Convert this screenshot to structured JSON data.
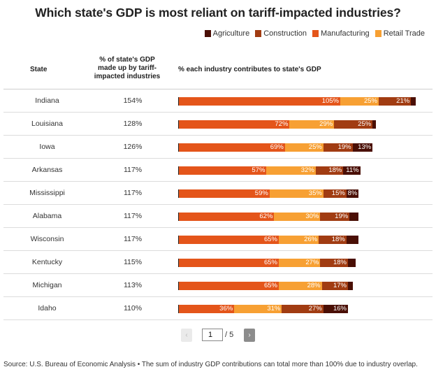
{
  "chart_data": {
    "type": "bar",
    "orientation": "horizontal",
    "stacked": true,
    "title": "Which state's GDP is most reliant on tariff-impacted industries?",
    "legend": [
      "Agriculture",
      "Construction",
      "Manufacturing",
      "Retail Trade"
    ],
    "columns": {
      "state": "State",
      "pct": "% of state's GDP made up by tariff-impacted industries",
      "industry": "% each industry contributes to state's GDP"
    },
    "categories": [
      "Indiana",
      "Louisiana",
      "Iowa",
      "Arkansas",
      "Mississippi",
      "Alabama",
      "Wisconsin",
      "Kentucky",
      "Michigan",
      "Idaho"
    ],
    "totals": [
      "154%",
      "128%",
      "126%",
      "117%",
      "117%",
      "117%",
      "117%",
      "115%",
      "113%",
      "110%"
    ],
    "series": [
      {
        "name": "Manufacturing",
        "values": [
          105,
          72,
          69,
          57,
          59,
          62,
          65,
          65,
          65,
          36
        ]
      },
      {
        "name": "Retail Trade",
        "values": [
          25,
          29,
          25,
          32,
          35,
          30,
          26,
          27,
          28,
          31
        ]
      },
      {
        "name": "Construction",
        "values": [
          21,
          25,
          19,
          18,
          15,
          19,
          18,
          18,
          17,
          27
        ]
      },
      {
        "name": "Agriculture",
        "values": [
          3,
          2,
          13,
          11,
          8,
          6,
          8,
          5,
          3,
          16
        ]
      }
    ],
    "segment_labels": [
      [
        "105%",
        "25%",
        "21%",
        ""
      ],
      [
        "72%",
        "29%",
        "25%",
        ""
      ],
      [
        "69%",
        "25%",
        "19%",
        "13%"
      ],
      [
        "57%",
        "32%",
        "18%",
        "11%"
      ],
      [
        "59%",
        "35%",
        "15%",
        "8%"
      ],
      [
        "62%",
        "30%",
        "19%",
        ""
      ],
      [
        "65%",
        "26%",
        "18%",
        ""
      ],
      [
        "65%",
        "27%",
        "18%",
        ""
      ],
      [
        "65%",
        "28%",
        "17%",
        ""
      ],
      [
        "36%",
        "31%",
        "27%",
        "16%"
      ]
    ],
    "colors": {
      "Manufacturing": "#e4551a",
      "Retail Trade": "#f7a033",
      "Construction": "#a13c12",
      "Agriculture": "#4a0f05"
    }
  },
  "pagination": {
    "prev": "‹",
    "current": "1",
    "total": "/ 5",
    "next": "›"
  },
  "source": "Source: U.S. Bureau of Economic Analysis • The sum of industry GDP contributions can total more than 100% due to industry overlap."
}
